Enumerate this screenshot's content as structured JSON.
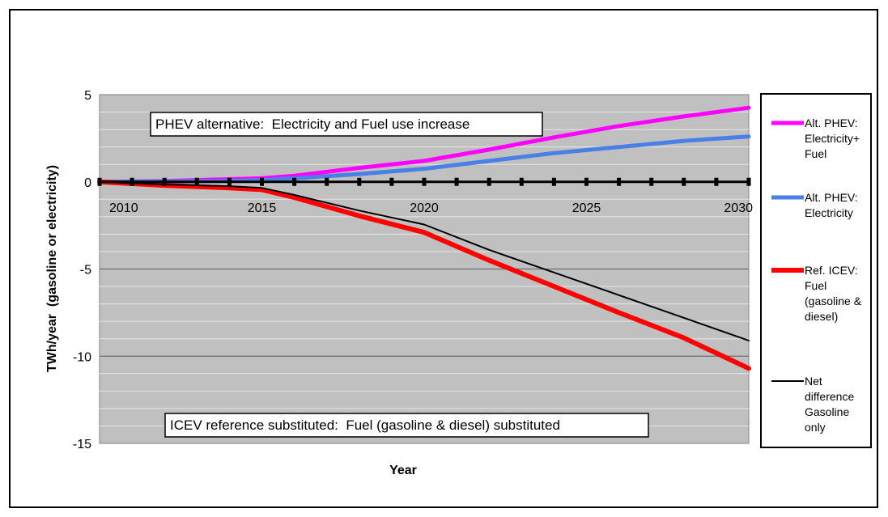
{
  "chart_data": {
    "type": "line",
    "title": "",
    "xlabel": "Year",
    "ylabel": "TWh/year  (gasoline or electricity)",
    "xlim": [
      2010,
      2030
    ],
    "ylim": [
      -15,
      5
    ],
    "x_ticks": [
      2010,
      2015,
      2020,
      2025,
      2030
    ],
    "y_ticks": [
      5,
      0,
      -5,
      -10,
      -15
    ],
    "y_minor_step": 1,
    "grid": true,
    "legend_position": "right",
    "plot_background": "#c0c0c0",
    "annotations": {
      "top": "PHEV alternative:  Electricity and Fuel use increase",
      "bottom": "ICEV reference substituted:  Fuel (gasoline & diesel) substituted"
    },
    "series": [
      {
        "name": "Alt. PHEV: Electricity+ Fuel",
        "legend_lines": [
          "Alt. PHEV:",
          "Electricity+",
          "Fuel"
        ],
        "color": "#ff00ff",
        "x": [
          2010,
          2012,
          2014,
          2015,
          2016,
          2018,
          2020,
          2022,
          2024,
          2026,
          2028,
          2030
        ],
        "values": [
          0,
          0.05,
          0.15,
          0.2,
          0.35,
          0.8,
          1.2,
          1.85,
          2.55,
          3.2,
          3.75,
          4.25
        ]
      },
      {
        "name": "Alt. PHEV: Electricity",
        "legend_lines": [
          "Alt. PHEV:",
          "Electricity"
        ],
        "color": "#4a7fe6",
        "x": [
          2010,
          2012,
          2014,
          2015,
          2016,
          2018,
          2020,
          2022,
          2024,
          2026,
          2028,
          2030
        ],
        "values": [
          0,
          0.03,
          0.06,
          0.1,
          0.2,
          0.45,
          0.75,
          1.2,
          1.65,
          2.0,
          2.35,
          2.6
        ]
      },
      {
        "name": "Ref. ICEV: Fuel (gasoline & diesel)",
        "legend_lines": [
          "Ref. ICEV:",
          "Fuel",
          "(gasoline &",
          "diesel)"
        ],
        "color": "#ff0000",
        "x": [
          2010,
          2012,
          2014,
          2015,
          2016,
          2018,
          2020,
          2022,
          2024,
          2026,
          2028,
          2030
        ],
        "values": [
          0,
          -0.2,
          -0.35,
          -0.45,
          -0.9,
          -1.95,
          -2.9,
          -4.5,
          -6.0,
          -7.5,
          -8.95,
          -10.7
        ]
      },
      {
        "name": "Net difference Gasoline only",
        "legend_lines": [
          "Net",
          "difference",
          "Gasoline",
          "only"
        ],
        "color": "#000000",
        "x": [
          2010,
          2012,
          2014,
          2015,
          2016,
          2018,
          2020,
          2022,
          2024,
          2026,
          2028,
          2030
        ],
        "values": [
          0,
          -0.15,
          -0.25,
          -0.35,
          -0.75,
          -1.65,
          -2.45,
          -3.9,
          -5.2,
          -6.5,
          -7.8,
          -9.1
        ]
      }
    ]
  }
}
